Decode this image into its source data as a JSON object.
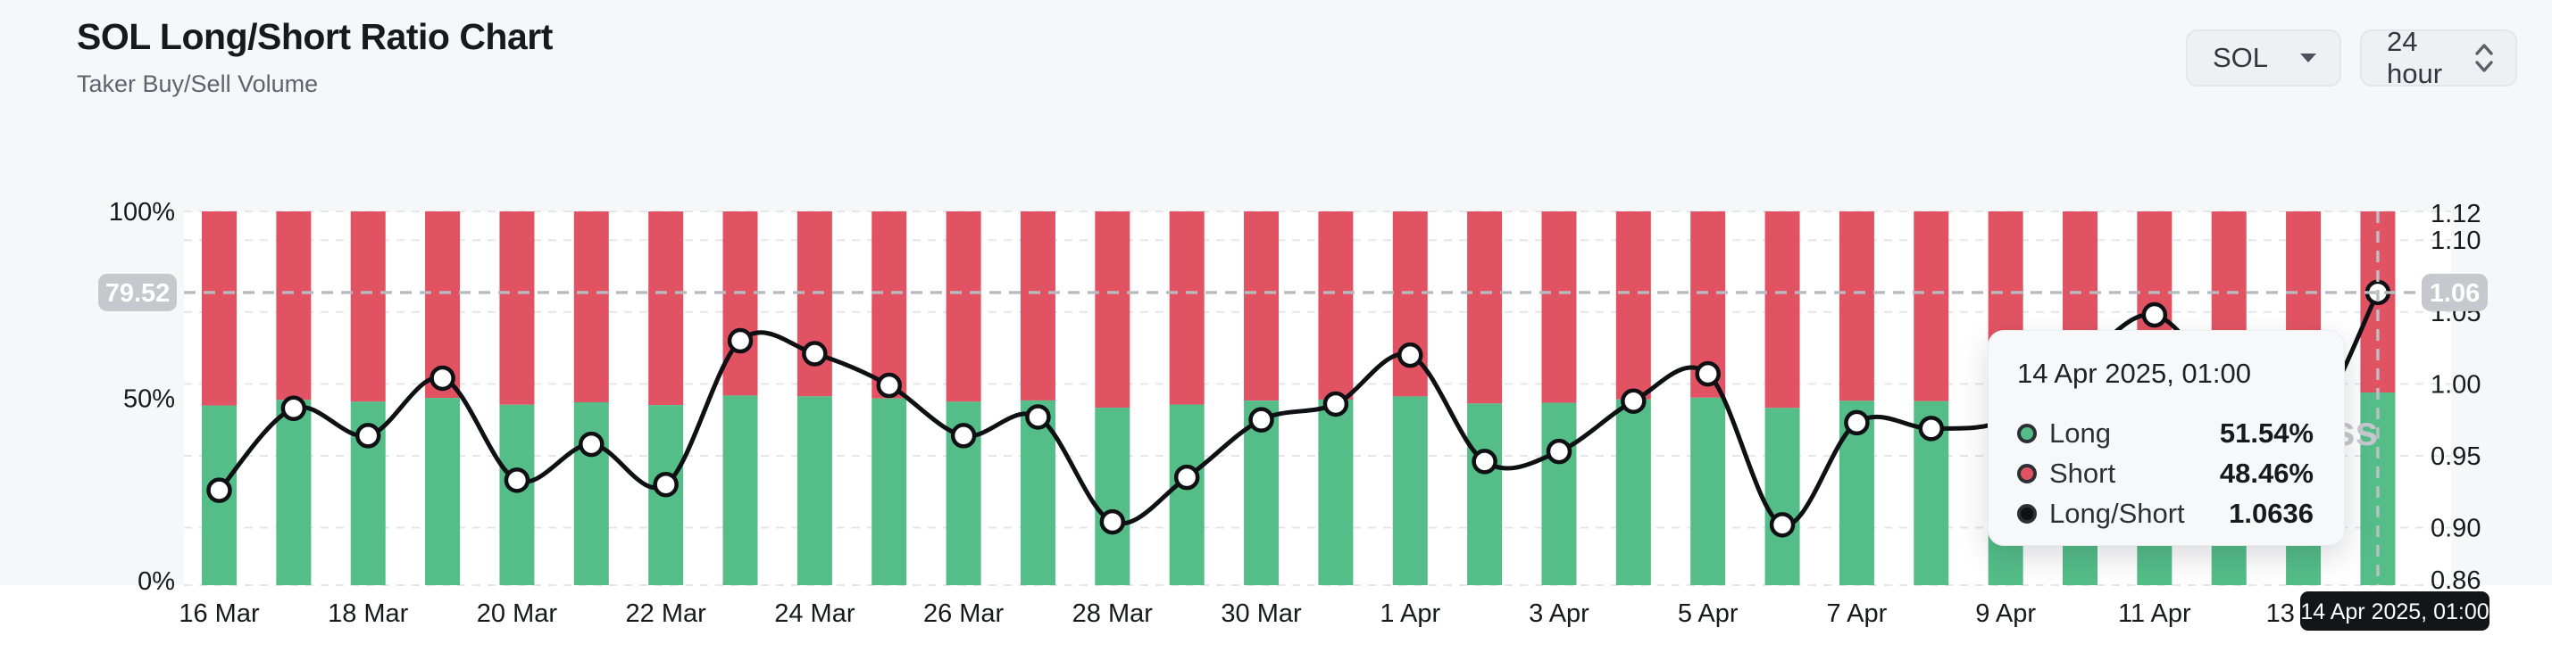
{
  "header": {
    "title": "SOL Long/Short Ratio Chart",
    "subtitle": "Taker Buy/Sell Volume",
    "symbol_select": {
      "value": "SOL",
      "icon": "caret-down-icon"
    },
    "interval_select": {
      "value": "24 hour",
      "icon": "up-down-chevrons-icon"
    }
  },
  "watermark_visible_text": "ss",
  "tooltip": {
    "title": "14 Apr 2025, 01:00",
    "rows": [
      {
        "label": "Long",
        "value": "51.54%",
        "color": "#54bd88"
      },
      {
        "label": "Short",
        "value": "48.46%",
        "color": "#e15363"
      },
      {
        "label": "Long/Short",
        "value": "1.0636",
        "color": "#0e1013"
      }
    ]
  },
  "chart_data": {
    "type": "stacked-bar+line",
    "title": "SOL Long/Short Ratio Chart",
    "categories": [
      "16 Mar",
      "17 Mar",
      "18 Mar",
      "19 Mar",
      "20 Mar",
      "21 Mar",
      "22 Mar",
      "23 Mar",
      "24 Mar",
      "25 Mar",
      "26 Mar",
      "27 Mar",
      "28 Mar",
      "29 Mar",
      "30 Mar",
      "31 Mar",
      "1 Apr",
      "2 Apr",
      "3 Apr",
      "4 Apr",
      "5 Apr",
      "6 Apr",
      "7 Apr",
      "8 Apr",
      "9 Apr",
      "10 Apr",
      "11 Apr",
      "12 Apr",
      "13 Apr",
      "14 Apr"
    ],
    "x_tick_labels": [
      "16 Mar",
      "18 Mar",
      "20 Mar",
      "22 Mar",
      "24 Mar",
      "26 Mar",
      "28 Mar",
      "30 Mar",
      "1 Apr",
      "3 Apr",
      "5 Apr",
      "7 Apr",
      "9 Apr",
      "11 Apr",
      "13 Apr"
    ],
    "series": [
      {
        "name": "Long",
        "unit": "%",
        "axis": "left",
        "color": "#54bd88",
        "values": [
          48.08,
          49.57,
          49.08,
          50.1,
          48.27,
          48.93,
          48.19,
          50.74,
          50.52,
          49.97,
          49.08,
          49.42,
          47.48,
          48.32,
          49.37,
          49.65,
          50.5,
          48.61,
          48.8,
          49.7,
          50.17,
          47.42,
          49.32,
          49.21,
          49.37,
          50.37,
          51.17,
          49.87,
          49.11,
          51.54
        ]
      },
      {
        "name": "Short",
        "unit": "%",
        "axis": "left",
        "color": "#e15363",
        "values": [
          51.92,
          50.43,
          50.92,
          49.9,
          51.73,
          51.07,
          51.81,
          49.26,
          49.48,
          50.03,
          50.92,
          50.58,
          52.52,
          51.68,
          50.63,
          50.35,
          49.5,
          51.39,
          51.2,
          50.3,
          49.83,
          52.58,
          50.68,
          50.79,
          50.63,
          49.63,
          48.83,
          50.13,
          50.89,
          48.46
        ]
      },
      {
        "name": "Long/Short",
        "unit": "ratio",
        "axis": "right",
        "color": "#0e1013",
        "values": [
          0.926,
          0.983,
          0.964,
          1.004,
          0.933,
          0.958,
          0.93,
          1.03,
          1.021,
          0.999,
          0.964,
          0.977,
          0.904,
          0.935,
          0.975,
          0.986,
          1.02,
          0.946,
          0.953,
          0.988,
          1.007,
          0.902,
          0.973,
          0.969,
          0.975,
          1.015,
          1.048,
          0.995,
          0.965,
          1.0636
        ]
      }
    ],
    "left_axis": {
      "ticks": [
        "100%",
        "50%",
        "0%"
      ],
      "range": [
        0,
        100
      ]
    },
    "right_axis": {
      "ticks": [
        "1.12",
        "1.10",
        "1.05",
        "1.00",
        "0.95",
        "0.90",
        "0.86"
      ],
      "tick_values": [
        1.12,
        1.1,
        1.05,
        1.0,
        0.95,
        0.9,
        0.86
      ],
      "range": [
        0.86,
        1.12
      ]
    },
    "grid": "horizontal-dashed",
    "legend_position": "none",
    "crosshair": {
      "active_category": "14 Apr",
      "ratio_value": 1.0636,
      "left_axis_badge": "79.52",
      "right_axis_badge": "1.06",
      "date_badge": "14 Apr 2025, 01:00"
    },
    "colors": {
      "long": "#54bd88",
      "short": "#e15363",
      "line": "#0e1013",
      "badge_gray": "#c5c8cc",
      "badge_black": "#141519"
    }
  }
}
